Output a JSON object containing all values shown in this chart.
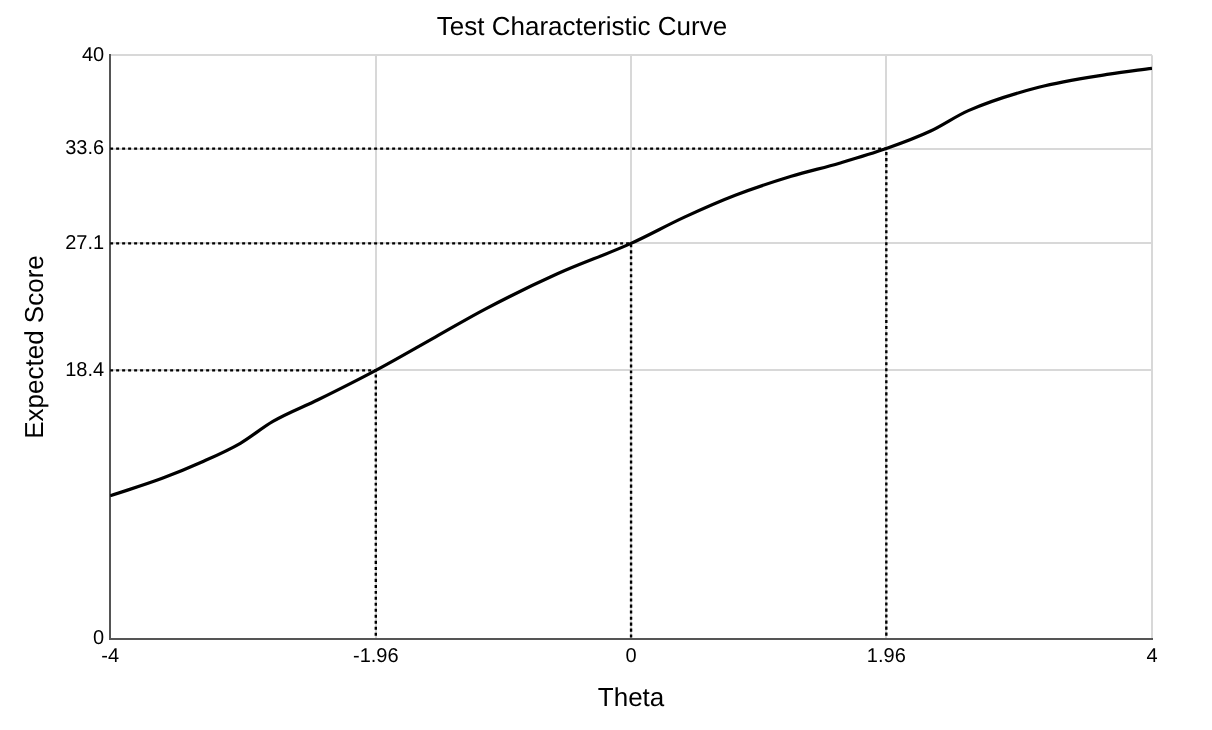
{
  "chart_data": {
    "type": "line",
    "title": "Test Characteristic Curve",
    "xlabel": "Theta",
    "ylabel": "Expected Score",
    "xlim": [
      -4,
      4
    ],
    "xticks": [
      -4,
      -1.96,
      0,
      1.96,
      4
    ],
    "ylim": [
      0,
      40
    ],
    "yticks": [
      0,
      18.4,
      27.1,
      33.6,
      40
    ],
    "grid": true,
    "legend": false,
    "series": [
      {
        "color": "#000000",
        "line_style": "solid",
        "x": [
          -4,
          -3.6,
          -3.3,
          -3,
          -2.75,
          -2.4,
          -1.96,
          -1.5,
          -1.12,
          -0.57,
          0,
          0.41,
          0.8,
          1.23,
          1.6,
          1.96,
          2.3,
          2.59,
          3.13,
          3.67,
          4
        ],
        "values": [
          9.8,
          11,
          12.1,
          13.4,
          14.9,
          16.4,
          18.4,
          20.7,
          22.6,
          25,
          27.1,
          28.9,
          30.4,
          31.7,
          32.6,
          33.6,
          34.8,
          36.2,
          37.8,
          38.7,
          39.1
        ]
      },
      {
        "color": "#000000",
        "line_style": "dotted",
        "x": [
          -4,
          -1.96,
          -1.96
        ],
        "values": [
          18.4,
          18.4,
          0
        ]
      },
      {
        "color": "#000000",
        "line_style": "dotted",
        "x": [
          -4,
          0,
          0
        ],
        "values": [
          27.1,
          27.1,
          0
        ]
      },
      {
        "color": "#000000",
        "line_style": "dotted",
        "x": [
          -4,
          1.96,
          1.96
        ],
        "values": [
          33.6,
          33.6,
          0
        ]
      }
    ]
  }
}
